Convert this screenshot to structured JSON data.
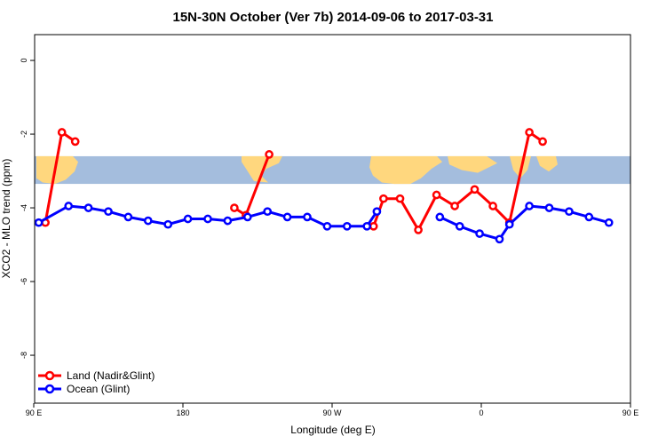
{
  "chart_data": {
    "type": "line",
    "title": "15N-30N October (Ver 7b)   2014-09-06 to 2017-03-31",
    "xlabel": "Longitude (deg E)",
    "ylabel": "XCO2 - MLO trend (ppm)",
    "xlim": [
      90,
      450
    ],
    "ylim": [
      -9.3,
      0.7
    ],
    "x_ticks": [
      {
        "value": 90,
        "label": "90 E"
      },
      {
        "value": 180,
        "label": "180"
      },
      {
        "value": 270,
        "label": "90 W"
      },
      {
        "value": 360,
        "label": "0"
      },
      {
        "value": 450,
        "label": "90 E"
      },
      {
        "value": 540,
        "label": "180"
      }
    ],
    "y_ticks": [
      {
        "value": 0,
        "label": "0"
      },
      {
        "value": -2,
        "label": "-2"
      },
      {
        "value": -4,
        "label": "-4"
      },
      {
        "value": -6,
        "label": "-6"
      },
      {
        "value": -8,
        "label": "-8"
      }
    ],
    "grid": false,
    "legend_position": "bottom-left",
    "map_band": {
      "y_top": -2.6,
      "y_bottom": -3.35,
      "ocean_color": "#a4bddd",
      "land_color": "#ffd77e"
    },
    "series": [
      {
        "name": "Land (Nadir&Glint)",
        "color": "#ff0000",
        "segments": [
          [
            {
              "x": 97,
              "y": -4.4
            },
            {
              "x": 107,
              "y": -1.95
            },
            {
              "x": 115,
              "y": -2.2
            }
          ],
          [
            {
              "x": 211,
              "y": -4.0
            },
            {
              "x": 218,
              "y": -4.2
            },
            {
              "x": 232,
              "y": -2.55
            }
          ],
          [
            {
              "x": 295,
              "y": -4.5
            },
            {
              "x": 301,
              "y": -3.75
            },
            {
              "x": 311,
              "y": -3.75
            },
            {
              "x": 322,
              "y": -4.6
            },
            {
              "x": 333,
              "y": -3.65
            },
            {
              "x": 344,
              "y": -3.95
            },
            {
              "x": 356,
              "y": -3.5
            },
            {
              "x": 367,
              "y": -3.95
            },
            {
              "x": 377,
              "y": -4.4
            },
            {
              "x": 389,
              "y": -1.95
            },
            {
              "x": 397,
              "y": -2.2
            }
          ]
        ]
      },
      {
        "name": "Ocean (Glint)",
        "color": "#0000ff",
        "segments": [
          [
            {
              "x": 93,
              "y": -4.4
            },
            {
              "x": 111,
              "y": -3.95
            },
            {
              "x": 123,
              "y": -4.0
            },
            {
              "x": 135,
              "y": -4.1
            },
            {
              "x": 147,
              "y": -4.25
            },
            {
              "x": 159,
              "y": -4.35
            },
            {
              "x": 171,
              "y": -4.45
            },
            {
              "x": 183,
              "y": -4.3
            },
            {
              "x": 195,
              "y": -4.3
            },
            {
              "x": 207,
              "y": -4.35
            },
            {
              "x": 219,
              "y": -4.25
            },
            {
              "x": 231,
              "y": -4.1
            },
            {
              "x": 243,
              "y": -4.25
            },
            {
              "x": 255,
              "y": -4.25
            },
            {
              "x": 267,
              "y": -4.5
            },
            {
              "x": 279,
              "y": -4.5
            },
            {
              "x": 291,
              "y": -4.5
            },
            {
              "x": 297,
              "y": -4.1
            }
          ],
          [
            {
              "x": 335,
              "y": -4.25
            },
            {
              "x": 347,
              "y": -4.5
            },
            {
              "x": 359,
              "y": -4.7
            },
            {
              "x": 371,
              "y": -4.85
            },
            {
              "x": 377,
              "y": -4.45
            },
            {
              "x": 389,
              "y": -3.95
            },
            {
              "x": 401,
              "y": -4.0
            },
            {
              "x": 413,
              "y": -4.1
            },
            {
              "x": 425,
              "y": -4.25
            },
            {
              "x": 437,
              "y": -4.4
            }
          ]
        ]
      }
    ]
  }
}
